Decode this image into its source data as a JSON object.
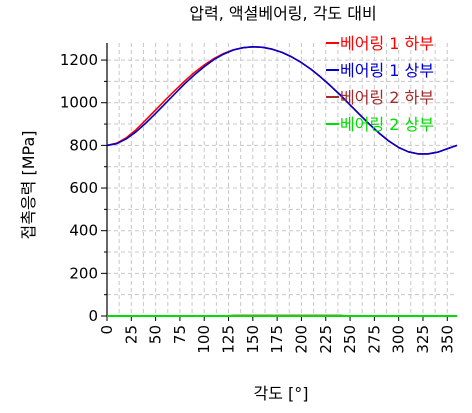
{
  "chart_data": {
    "type": "line",
    "title": "압력, 액셜베어링, 각도 대비",
    "xlabel": "각도 [°]",
    "ylabel": "접촉응력 [MPa]",
    "xlim": [
      0,
      360
    ],
    "ylim": [
      0,
      1280
    ],
    "xticks": [
      0,
      25,
      50,
      75,
      100,
      125,
      150,
      175,
      200,
      225,
      250,
      275,
      300,
      325,
      350
    ],
    "yticks": [
      0,
      200,
      400,
      600,
      800,
      1000,
      1200
    ],
    "grid": true,
    "legend_position": "top-right",
    "x": [
      0,
      10,
      20,
      30,
      40,
      50,
      60,
      70,
      80,
      90,
      100,
      110,
      120,
      130,
      140,
      150,
      160,
      170,
      180,
      190,
      200,
      210,
      220,
      230,
      240,
      250,
      260,
      270,
      280,
      290,
      300,
      310,
      320,
      330,
      340,
      350,
      360
    ],
    "series": [
      {
        "name": "베어링 1 하부",
        "color": "#ff0000",
        "values": [
          800,
          810,
          836,
          874,
          920,
          966,
          1013,
          1058,
          1102,
          1142,
          1177,
          1207,
          1231,
          1248,
          1258,
          1262,
          1260,
          1251,
          1236,
          1215,
          1188,
          1156,
          1119,
          1079,
          1036,
          990,
          944,
          899,
          857,
          820,
          790,
          770,
          760,
          760,
          768,
          784,
          800
        ]
      },
      {
        "name": "베어링 1 상부",
        "color": "#0000cc",
        "values": [
          800,
          808,
          831,
          864,
          905,
          950,
          996,
          1043,
          1089,
          1131,
          1169,
          1202,
          1228,
          1247,
          1258,
          1262,
          1260,
          1251,
          1236,
          1215,
          1188,
          1156,
          1119,
          1079,
          1036,
          990,
          944,
          899,
          857,
          820,
          790,
          770,
          760,
          760,
          768,
          784,
          800
        ]
      },
      {
        "name": "베어링 2 하부",
        "color": "#a52a2a",
        "values": [
          0,
          0,
          0,
          0,
          0,
          0,
          0,
          0,
          0,
          0,
          0,
          0,
          0,
          3,
          3,
          3,
          3,
          3,
          3,
          3,
          3,
          3,
          3,
          3,
          3,
          0,
          0,
          0,
          0,
          0,
          0,
          0,
          0,
          0,
          0,
          0,
          0
        ]
      },
      {
        "name": "베어링 2 상부",
        "color": "#00dd00",
        "values": [
          0,
          0,
          0,
          0,
          0,
          0,
          0,
          0,
          0,
          0,
          0,
          0,
          0,
          0,
          0,
          0,
          0,
          0,
          0,
          0,
          0,
          0,
          0,
          0,
          0,
          0,
          0,
          0,
          0,
          0,
          0,
          0,
          0,
          0,
          0,
          0,
          0
        ]
      }
    ]
  }
}
